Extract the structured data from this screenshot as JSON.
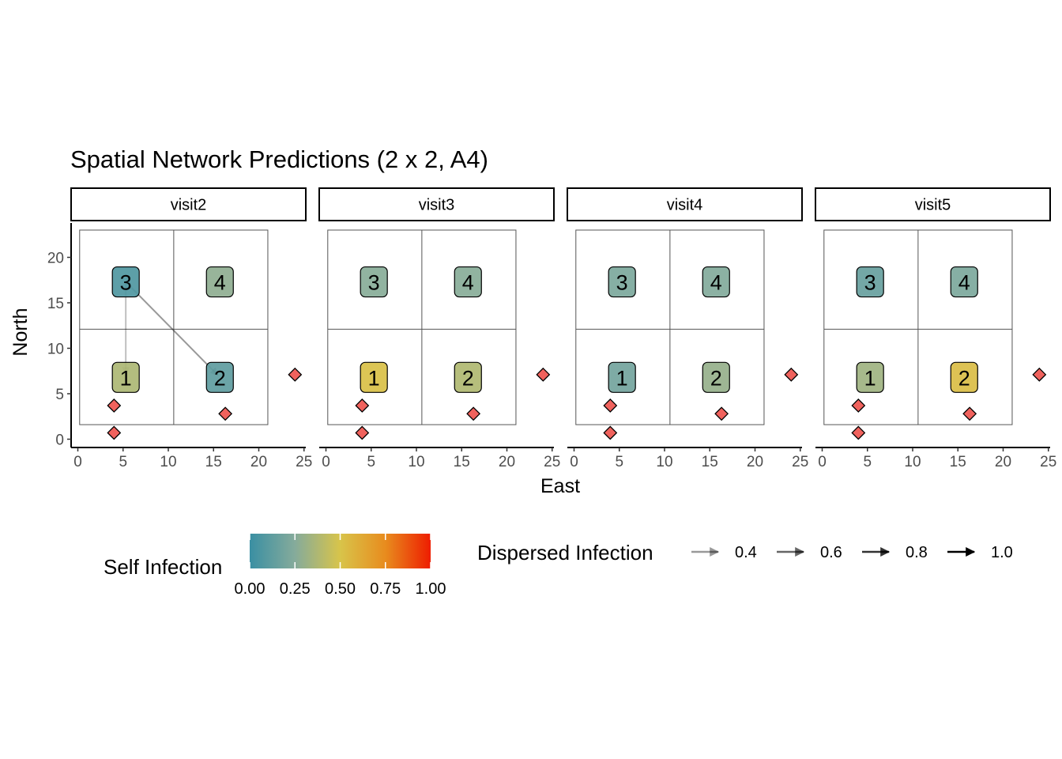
{
  "title": "Spatial Network Predictions (2 x 2, A4)",
  "chart_data": {
    "type": "scatter",
    "xlabel": "East",
    "ylabel": "North",
    "xlim": [
      0,
      25
    ],
    "ylim": [
      0,
      23
    ],
    "x_ticks": [
      "0",
      "5",
      "10",
      "15",
      "20",
      "25"
    ],
    "y_ticks": [
      "0",
      "5",
      "10",
      "15",
      "20"
    ],
    "grid": false,
    "panels": [
      "visit2",
      "visit3",
      "visit4",
      "visit5"
    ],
    "cells": [
      {
        "label": "1",
        "x": 5.3,
        "y": 6.8
      },
      {
        "label": "2",
        "x": 15.7,
        "y": 6.8
      },
      {
        "label": "3",
        "x": 5.3,
        "y": 17.3
      },
      {
        "label": "4",
        "x": 15.7,
        "y": 17.3
      }
    ],
    "cell_boundaries": {
      "x": [
        0.2,
        10.6,
        21.0
      ],
      "y": [
        1.6,
        12.1,
        23.0
      ]
    },
    "self_infection": [
      {
        "panel": "visit2",
        "values": [
          0.37,
          0.12,
          0.07,
          0.28
        ]
      },
      {
        "panel": "visit3",
        "values": [
          0.52,
          0.38,
          0.26,
          0.26
        ]
      },
      {
        "panel": "visit4",
        "values": [
          0.19,
          0.3,
          0.22,
          0.24
        ]
      },
      {
        "panel": "visit5",
        "values": [
          0.33,
          0.53,
          0.15,
          0.22
        ]
      }
    ],
    "dispersed_infection": [
      {
        "panel": "visit2",
        "from": "3",
        "to": "1",
        "value": 0.25
      },
      {
        "panel": "visit2",
        "from": "3",
        "to": "2",
        "value": 0.4
      }
    ],
    "sources": [
      {
        "x": 4.0,
        "y": 3.7
      },
      {
        "x": 4.0,
        "y": 0.7
      },
      {
        "x": 16.3,
        "y": 2.8
      },
      {
        "x": 24.0,
        "y": 7.1
      }
    ],
    "legend": {
      "position": "bottom",
      "self_infection": {
        "title": "Self Infection",
        "ticks": [
          "0.00",
          "0.25",
          "0.50",
          "0.75",
          "1.00"
        ],
        "colors": [
          "#3a8fa3",
          "#85ab9b",
          "#d8c44a",
          "#e88c1e",
          "#ee1d00"
        ]
      },
      "dispersed_infection": {
        "title": "Dispersed Infection",
        "entries": [
          "0.4",
          "0.6",
          "0.8",
          "1.0"
        ]
      }
    }
  }
}
